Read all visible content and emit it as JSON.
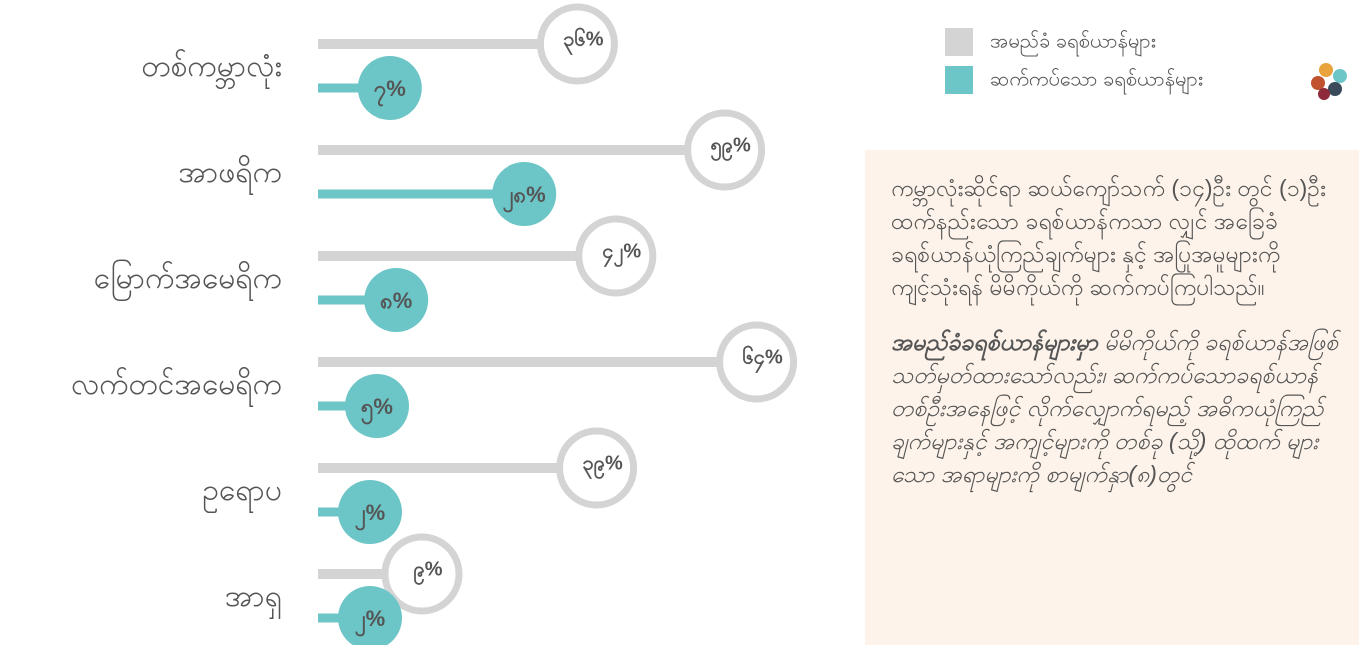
{
  "chart_data": {
    "type": "bar",
    "categories": [
      "တစ်ကမ္ဘာလုံး",
      "အာဖရိက",
      "မြောက်အမေရိက",
      "လက်တင်အမေရိက",
      "ဥရောပ",
      "အာရှ"
    ],
    "series": [
      {
        "name": "အမည်ခံ ခရစ်ယာန်များ",
        "color": "#d4d4d4",
        "values": [
          36,
          59,
          42,
          64,
          39,
          9
        ],
        "value_labels": [
          "၃၆%",
          "၅၉%",
          "၄၂%",
          "၆၄%",
          "၃၉%",
          "၉%"
        ]
      },
      {
        "name": "ဆက်ကပ်သော ခရစ်ယာန်များ",
        "color": "#6cc5c6",
        "values": [
          7,
          28,
          8,
          5,
          2,
          2
        ],
        "value_labels": [
          "၇%",
          "၂၈%",
          "၈%",
          "၅%",
          "၂%",
          "၂%"
        ]
      }
    ]
  },
  "note": {
    "paragraph1": "ကမ္ဘာလုံးဆိုင်ရာ ဆယ်ကျော်သက် (၁၄)ဦး တွင် (၁)ဦးထက်နည်းသော ခရစ်ယာန်ကသာ လျှင် အခြေခံခရစ်ယာန်ယုံကြည်ချက်များ နှင့် အပြုအမူများကို ကျင့်သုံးရန် မိမိကိုယ်ကို ဆက်ကပ်ကြပါသည်။",
    "paragraph2_lead": "အမည်ခံခရစ်ယာန်များမှာ",
    "paragraph2_rest": " မိမိကိုယ်ကို ခရစ်ယာန်အဖြစ် သတ်မှတ်ထားသော်လည်း၊ ဆက်ကပ်သောခရစ်ယာန်တစ်ဦးအနေဖြင့် လိုက်လျှောက်ရမည့် အဓိကယုံကြည်ချက်များနှင့် အကျင့်များကို တစ်ခု (သို့) ထိုထက် များသော အရာများကို စာမျက်နှာ(၈)တွင်"
  }
}
